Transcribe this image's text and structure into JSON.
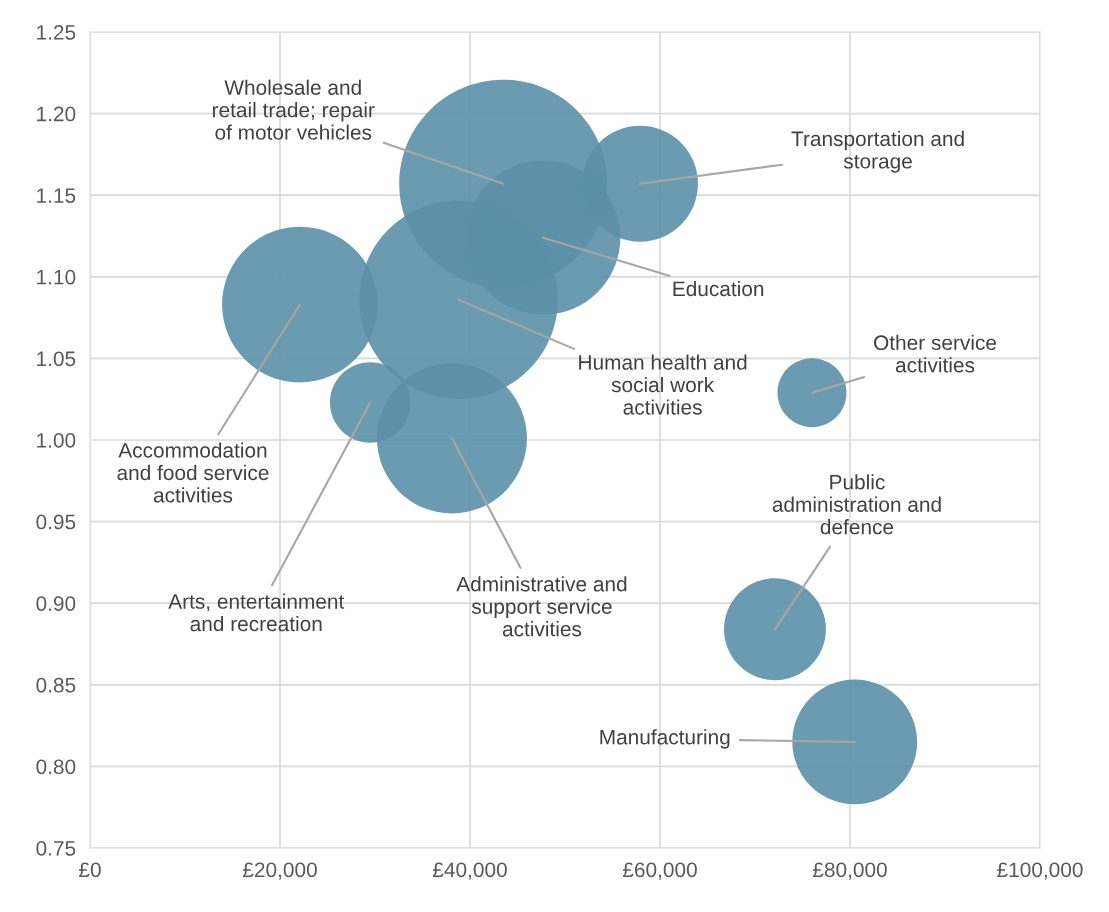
{
  "chart_data": {
    "type": "bubble",
    "color": "#5b90a8",
    "x": [
      43500,
      57900,
      47700,
      38800,
      22100,
      29500,
      38100,
      76000,
      72100,
      80500
    ],
    "values": [
      1.157,
      1.157,
      1.124,
      1.086,
      1.083,
      1.023,
      1.001,
      1.029,
      0.884,
      0.815
    ],
    "sizes": [
      1,
      0.31,
      0.55,
      0.91,
      0.56,
      0.15,
      0.52,
      0.11,
      0.24,
      0.36
    ],
    "annotations": [
      {
        "text": "Wholesale and\nretail trade; repair\nof motor vehicles",
        "x": 43500,
        "y": 1.157
      },
      {
        "text": "Transportation and\nstorage",
        "x": 57900,
        "y": 1.157
      },
      {
        "text": "Education",
        "x": 47700,
        "y": 1.124
      },
      {
        "text": "Human health and\nsocial work\nactivities",
        "x": 38800,
        "y": 1.086
      },
      {
        "text": "Accommodation\nand food service\nactivities",
        "x": 22100,
        "y": 1.083
      },
      {
        "text": "Arts, entertainment\nand recreation",
        "x": 29500,
        "y": 1.023
      },
      {
        "text": "Administrative and\nsupport service\nactivities",
        "x": 38100,
        "y": 1.001
      },
      {
        "text": "Other service\nactivities",
        "x": 76000,
        "y": 1.029
      },
      {
        "text": "Public\nadministration and\ndefence",
        "x": 72100,
        "y": 0.884
      },
      {
        "text": "Manufacturing",
        "x": 80500,
        "y": 0.815
      }
    ],
    "xlim": [
      0,
      100000
    ],
    "xticks": [
      {
        "value": 0,
        "label": "£0"
      },
      {
        "value": 20000,
        "label": "£20,000"
      },
      {
        "value": 40000,
        "label": "£40,000"
      },
      {
        "value": 60000,
        "label": "£60,000"
      },
      {
        "value": 80000,
        "label": "£80,000"
      },
      {
        "value": 100000,
        "label": "£100,000"
      }
    ],
    "ylim": [
      0.75,
      1.25
    ],
    "yticks": [
      {
        "value": 0.75,
        "label": "0.75"
      },
      {
        "value": 0.8,
        "label": "0.80"
      },
      {
        "value": 0.85,
        "label": "0.85"
      },
      {
        "value": 0.9,
        "label": "0.90"
      },
      {
        "value": 0.95,
        "label": "0.95"
      },
      {
        "value": 1.0,
        "label": "1.00"
      },
      {
        "value": 1.05,
        "label": "1.05"
      },
      {
        "value": 1.1,
        "label": "1.10"
      },
      {
        "value": 1.15,
        "label": "1.15"
      },
      {
        "value": 1.2,
        "label": "1.20"
      },
      {
        "value": 1.25,
        "label": "1.25"
      }
    ],
    "grid": true
  }
}
